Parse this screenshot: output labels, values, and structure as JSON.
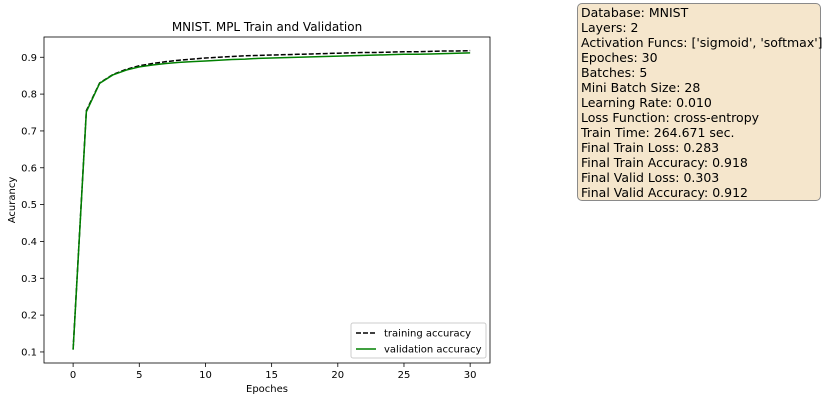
{
  "chart_data": {
    "type": "line",
    "title": "MNIST. MPL Train and Validation",
    "xlabel": "Epoches",
    "ylabel": "Acurancy",
    "xlim": [
      -2.2,
      31.5
    ],
    "ylim": [
      0.07,
      0.955
    ],
    "xticks": [
      0,
      5,
      10,
      15,
      20,
      25,
      30
    ],
    "yticks": [
      0.1,
      0.2,
      0.3,
      0.4,
      0.5,
      0.6,
      0.7,
      0.8,
      0.9
    ],
    "legend_position": "lower-right",
    "grid": false,
    "x": [
      0,
      1,
      2,
      3,
      4,
      5,
      6,
      7,
      8,
      9,
      10,
      11,
      12,
      13,
      14,
      15,
      16,
      17,
      18,
      19,
      20,
      21,
      22,
      23,
      24,
      25,
      26,
      27,
      28,
      29,
      30
    ],
    "series": [
      {
        "name": "training accuracy",
        "color": "#000000",
        "dash": true,
        "values": [
          0.108,
          0.755,
          0.83,
          0.853,
          0.867,
          0.877,
          0.883,
          0.888,
          0.892,
          0.895,
          0.898,
          0.9,
          0.902,
          0.904,
          0.905,
          0.906,
          0.907,
          0.908,
          0.909,
          0.91,
          0.911,
          0.912,
          0.913,
          0.913,
          0.914,
          0.915,
          0.915,
          0.916,
          0.917,
          0.917,
          0.918
        ]
      },
      {
        "name": "validation accuracy",
        "color": "#008000",
        "dash": false,
        "values": [
          0.106,
          0.752,
          0.829,
          0.852,
          0.865,
          0.874,
          0.879,
          0.883,
          0.886,
          0.888,
          0.89,
          0.892,
          0.894,
          0.895,
          0.897,
          0.898,
          0.899,
          0.9,
          0.901,
          0.902,
          0.903,
          0.904,
          0.905,
          0.906,
          0.907,
          0.908,
          0.908,
          0.909,
          0.91,
          0.911,
          0.912
        ]
      }
    ]
  },
  "info_box": {
    "lines": [
      "Database: MNIST",
      "Layers: 2",
      "Activation Funcs: ['sigmoid', 'softmax']",
      "Epoches: 30",
      "Batches: 5",
      "Mini Batch Size: 28",
      "Learning Rate: 0.010",
      "Loss Function: cross-entropy",
      "Train Time: 264.671 sec.",
      "Final Train Loss: 0.283",
      "Final Train Accuracy: 0.918",
      "Final Valid Loss: 0.303",
      "Final Valid Accuracy: 0.912"
    ]
  }
}
